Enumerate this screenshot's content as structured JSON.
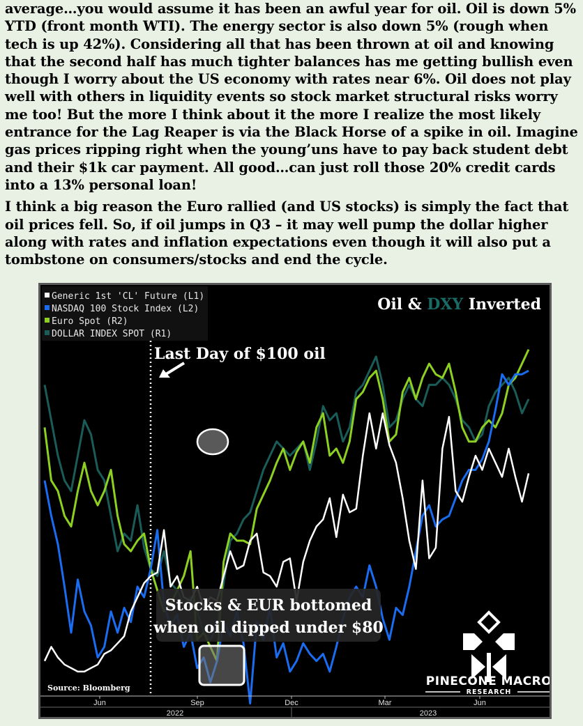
{
  "article": {
    "paragraphs": [
      "average…you would assume it has been an awful year for oil. Oil is down 5% YTD (front month WTI). The energy sector is also down 5% (rough when tech is up 42%). Considering all that has been thrown at oil and knowing that the second half has much tighter balances has me getting bullish even though I worry about the US economy with rates near 6%. Oil does not play well with others in liquidity events so stock market structural risks worry me too! But the more I think about it the more I realize the most likely entrance for the Lag Reaper is via the Black Horse of a spike in oil. Imagine gas prices ripping right when the young’uns have to pay back student debt and their $1k car payment. All good…can just roll those 20% credit cards into a 13% personal loan!",
      "I think a big reason the Euro rallied (and US stocks) is simply the fact that oil prices fell. So, if oil jumps in Q3 – it may well pump the dollar higher along with rates and inflation expectations even though it will also put a tombstone on consumers/stocks and end the cycle."
    ]
  },
  "chart": {
    "title_part1": "Oil & ",
    "title_part2": "DXY",
    "title_part3": " Inverted",
    "source": "Source: Bloomberg",
    "annotation_line": "Last Day of $100 oil",
    "annotation_box_line1": "Stocks & EUR bottomed",
    "annotation_box_line2": "when oil dipped under $80",
    "logo_name": "PINECONE MACRO",
    "logo_sub": "RESEARCH",
    "colors": {
      "oil": "#ffffff",
      "nasdaq": "#1a6cf0",
      "euro": "#8ed022",
      "dxy": "#1a5c58",
      "background": "#000000"
    }
  },
  "chart_data": {
    "type": "line",
    "x_tick_labels": [
      "Jun",
      "Sep",
      "Dec",
      "Mar",
      "Jun"
    ],
    "year_labels": [
      "2022",
      "2023"
    ],
    "series": [
      {
        "name": "Generic 1st 'CL' Future  (L1)",
        "values": [
          4,
          8,
          5,
          3,
          2,
          1,
          1,
          2,
          3,
          6,
          7,
          9,
          11,
          18,
          22,
          26,
          28,
          29,
          41,
          25,
          28,
          22,
          21,
          25,
          19,
          22,
          21,
          28,
          35,
          30,
          31,
          38,
          40,
          29,
          28,
          25,
          32,
          33,
          21,
          32,
          38,
          42,
          44,
          50,
          39,
          51,
          46,
          47,
          62,
          74,
          64,
          74,
          65,
          60,
          50,
          38,
          30,
          55,
          33,
          36,
          64,
          73,
          52,
          49,
          56,
          62,
          58,
          64,
          60,
          56,
          64,
          56,
          49,
          57
        ]
      },
      {
        "name": "NASDAQ 100 Stock Index  (L2)",
        "values": [
          55,
          45,
          37,
          25,
          12,
          27,
          18,
          14,
          5,
          8,
          18,
          12,
          19,
          15,
          25,
          22,
          30,
          41,
          20,
          14,
          17,
          8,
          12,
          2,
          5,
          -2,
          4,
          15,
          11,
          18,
          9,
          -8,
          15,
          10,
          19,
          5,
          9,
          1,
          4,
          9,
          6,
          4,
          6,
          1,
          8,
          16,
          22,
          25,
          22,
          31,
          25,
          16,
          10,
          19,
          17,
          25,
          35,
          45,
          48,
          42,
          44,
          45,
          50,
          55,
          58,
          58,
          61,
          66,
          75,
          85,
          82,
          85,
          85,
          86
        ]
      },
      {
        "name": "Euro Spot  (R2)",
        "values": [
          70,
          55,
          52,
          45,
          42,
          52,
          60,
          52,
          48,
          52,
          58,
          45,
          37,
          35,
          38,
          40,
          30,
          24,
          18,
          20,
          24,
          28,
          35,
          10,
          12,
          8,
          4,
          32,
          40,
          38,
          38,
          37,
          47,
          51,
          55,
          60,
          64,
          58,
          63,
          66,
          60,
          70,
          74,
          62,
          64,
          60,
          66,
          78,
          80,
          84,
          86,
          78,
          66,
          68,
          80,
          84,
          78,
          84,
          88,
          85,
          84,
          88,
          80,
          70,
          66,
          66,
          70,
          72,
          70,
          74,
          82,
          84,
          88,
          92
        ]
      },
      {
        "name": "DOLLAR INDEX SPOT  (R1)",
        "values": [
          82,
          72,
          62,
          55,
          52,
          62,
          72,
          68,
          58,
          55,
          45,
          35,
          40,
          38,
          48,
          36,
          30,
          28,
          35,
          26,
          24,
          20,
          22,
          18,
          12,
          10,
          14,
          26,
          38,
          40,
          44,
          46,
          52,
          58,
          62,
          66,
          64,
          62,
          64,
          66,
          58,
          66,
          76,
          72,
          74,
          66,
          70,
          80,
          82,
          86,
          90,
          82,
          70,
          72,
          78,
          82,
          78,
          76,
          82,
          82,
          84,
          82,
          78,
          72,
          70,
          66,
          68,
          76,
          80,
          82,
          84,
          80,
          74,
          78
        ]
      }
    ]
  }
}
